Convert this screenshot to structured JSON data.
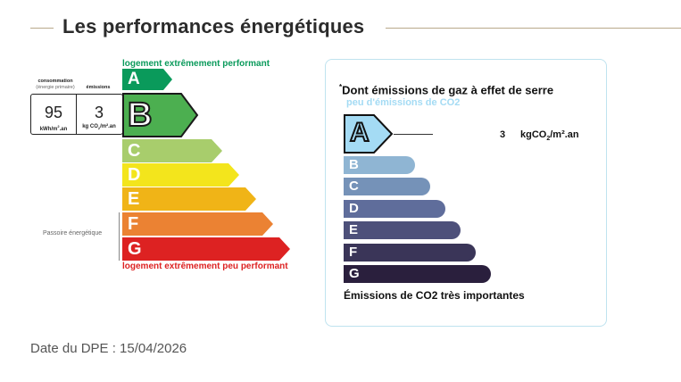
{
  "header": {
    "title": "Les performances énergétiques"
  },
  "dpe": {
    "caption_top": "logement extrêmement performant",
    "caption_bottom": "logement extrêmement peu performant",
    "passoire_label": "Passoire énergétique",
    "consumption": {
      "label": "consommation",
      "sublabel": "(énergie primaire)",
      "value": "95",
      "unit_main": "kWh/m",
      "unit_sup": "2",
      "unit_tail": ".an"
    },
    "emissions": {
      "label": "émissions",
      "value": "3",
      "unit_main": "kg CO",
      "unit_sub": "2",
      "unit_tail": "/m².an"
    },
    "current_class": "B",
    "classes": [
      {
        "letter": "A",
        "color": "#0a9a5b"
      },
      {
        "letter": "B",
        "color": "#4caf50"
      },
      {
        "letter": "C",
        "color": "#a8cd6c"
      },
      {
        "letter": "D",
        "color": "#f3e51c"
      },
      {
        "letter": "E",
        "color": "#f0b417"
      },
      {
        "letter": "F",
        "color": "#eb8233"
      },
      {
        "letter": "G",
        "color": "#dd2222"
      }
    ]
  },
  "ges": {
    "title_marker": "*",
    "title": "Dont émissions de gaz à effet de serre",
    "subtitle": "peu d'émissions de CO2",
    "footer": "Émissions de CO2 très importantes",
    "current_class": "A",
    "value": "3",
    "unit_main": "kgCO",
    "unit_sub": "2",
    "unit_tail": "/m².an",
    "classes": [
      {
        "letter": "A",
        "color": "#a4dbf4"
      },
      {
        "letter": "B",
        "color": "#8fb5d3"
      },
      {
        "letter": "C",
        "color": "#7592b8"
      },
      {
        "letter": "D",
        "color": "#5f6d9b"
      },
      {
        "letter": "E",
        "color": "#4d507a"
      },
      {
        "letter": "F",
        "color": "#3a3558"
      },
      {
        "letter": "G",
        "color": "#2a1f3d"
      }
    ]
  },
  "footer": {
    "date_label": "Date du DPE : 15/04/2026"
  },
  "colors": {
    "rule": "#b9a98a",
    "panel_border": "#bfe3ef",
    "caption_top": "#0a9a5b",
    "caption_bottom": "#dd2222",
    "ges_subtitle": "#a4dbf4"
  }
}
